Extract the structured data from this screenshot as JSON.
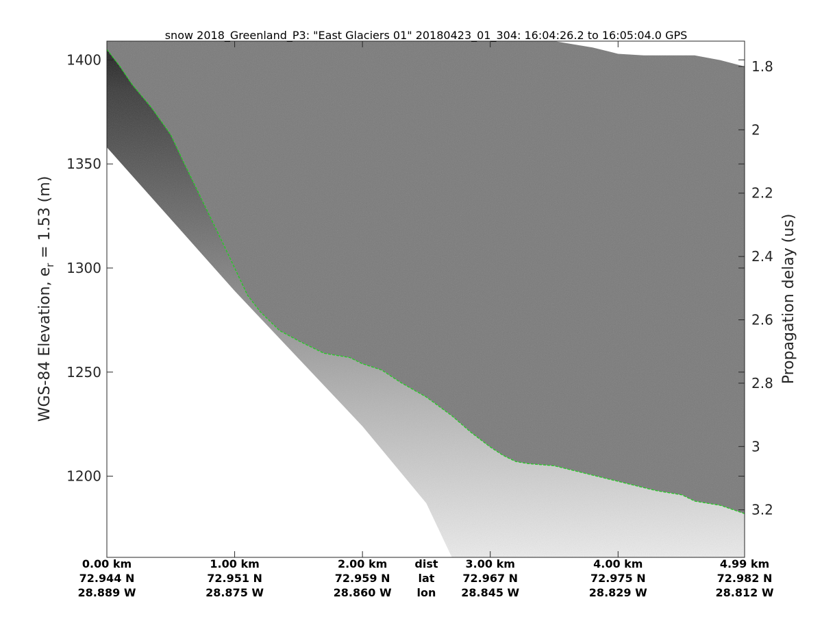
{
  "chart_data": {
    "type": "heatmap",
    "title": "snow 2018_Greenland_P3: \"East Glaciers 01\"  20180423_01_304: 16:04:26.2 to 16:05:04.0 GPS",
    "ylabel_left": "WGS-84 Elevation, e",
    "ylabel_left_sub": "r",
    "ylabel_left_tail": " = 1.53 (m)",
    "ylabel_right": "Propagation delay (us)",
    "ylim_left": [
      1161,
      1409
    ],
    "ylim_right": [
      3.35,
      1.72
    ],
    "xlim_km": [
      0,
      4.99
    ],
    "left_ticks": [
      {
        "value": 1200,
        "label": "1200"
      },
      {
        "value": 1250,
        "label": "1250"
      },
      {
        "value": 1300,
        "label": "1300"
      },
      {
        "value": 1350,
        "label": "1350"
      },
      {
        "value": 1400,
        "label": "1400"
      }
    ],
    "right_ticks": [
      {
        "value": 1.8,
        "label": "1.8"
      },
      {
        "value": 2.0,
        "label": "2"
      },
      {
        "value": 2.2,
        "label": "2.2"
      },
      {
        "value": 2.4,
        "label": "2.4"
      },
      {
        "value": 2.6,
        "label": "2.6"
      },
      {
        "value": 2.8,
        "label": "2.8"
      },
      {
        "value": 3.0,
        "label": "3"
      },
      {
        "value": 3.2,
        "label": "3.2"
      }
    ],
    "x_ticks": [
      {
        "km": 0.0,
        "dist": "0.00 km",
        "lat": "72.944 N",
        "lon": "28.889 W"
      },
      {
        "km": 1.0,
        "dist": "1.00 km",
        "lat": "72.951 N",
        "lon": "28.875 W"
      },
      {
        "km": 2.0,
        "dist": "2.00 km",
        "lat": "72.959 N",
        "lon": "28.860 W"
      },
      {
        "km": 3.0,
        "dist": "3.00 km",
        "lat": "72.967 N",
        "lon": "28.845 W"
      },
      {
        "km": 4.0,
        "dist": "4.00 km",
        "lat": "72.975 N",
        "lon": "28.829 W"
      },
      {
        "km": 4.99,
        "dist": "4.99 km",
        "lat": "72.982 N",
        "lon": "28.812 W"
      }
    ],
    "row_labels": {
      "dist": "dist",
      "lat": "lat",
      "lon": "lon",
      "km": 2.5
    },
    "surface_elevation": {
      "km": [
        0.0,
        0.1,
        0.2,
        0.35,
        0.5,
        0.6,
        0.75,
        0.9,
        1.0,
        1.1,
        1.2,
        1.35,
        1.5,
        1.7,
        1.9,
        2.0,
        2.15,
        2.3,
        2.5,
        2.7,
        2.85,
        3.0,
        3.1,
        3.2,
        3.3,
        3.5,
        3.7,
        3.9,
        4.1,
        4.3,
        4.5,
        4.6,
        4.7,
        4.8,
        4.99
      ],
      "elevation": [
        1405,
        1397,
        1388,
        1377,
        1364,
        1351,
        1332,
        1313,
        1300,
        1287,
        1279,
        1270,
        1265,
        1259,
        1257,
        1254,
        1251,
        1245,
        1238,
        1229,
        1221,
        1214,
        1210,
        1207,
        1206,
        1205,
        1202,
        1199,
        1196,
        1193,
        1191,
        1188,
        1187,
        1186,
        1182
      ]
    },
    "surface_line_color": "#22cc22",
    "noise_color": "#7a7a7a",
    "top_clip_delay_us": {
      "km": [
        0.0,
        3.5,
        3.8,
        4.0,
        4.2,
        4.4,
        4.6,
        4.8,
        4.99
      ],
      "delay": [
        1.72,
        1.72,
        1.74,
        1.76,
        1.765,
        1.765,
        1.765,
        1.78,
        1.8
      ]
    },
    "data_floor_elevation": {
      "km": [
        0.0,
        1.0,
        2.0,
        2.5,
        2.7,
        4.99
      ],
      "elevation": [
        1358,
        1289,
        1224,
        1187,
        1161,
        1161
      ]
    }
  }
}
